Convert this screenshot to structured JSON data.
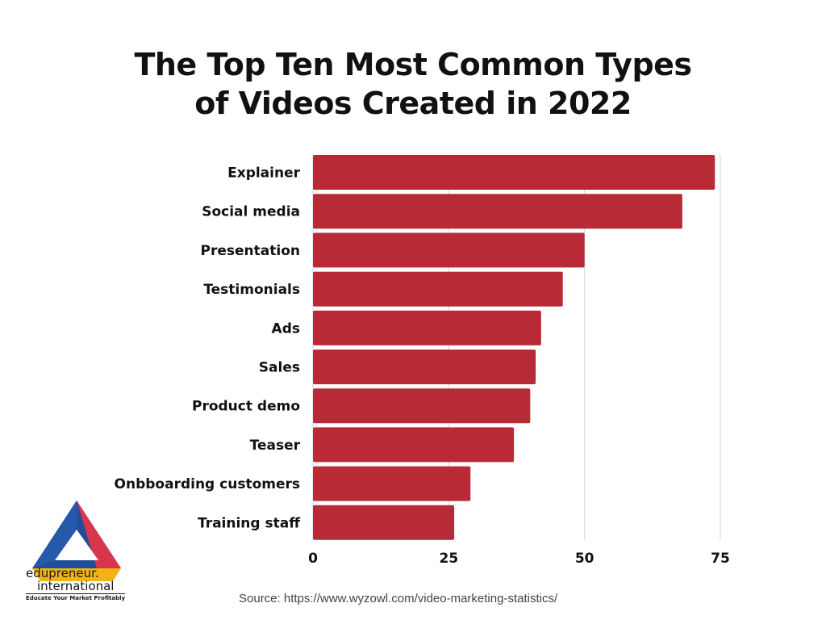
{
  "title": {
    "line1": "The Top Ten Most Common Types",
    "line2": "of Videos Created in 2022"
  },
  "source_text": "Source:  https://www.wyzowl.com/video-marketing-statistics/",
  "logo": {
    "name_line1": "edupreneur.",
    "name_line2": "international",
    "tagline": "Educate Your Market Profitably"
  },
  "colors": {
    "bar": "#b82a35",
    "grid": "#d4d4d4"
  },
  "chart_data": {
    "type": "bar",
    "orientation": "horizontal",
    "title": "The Top Ten Most Common Types of Videos Created in 2022",
    "xlabel": "",
    "ylabel": "",
    "categories": [
      "Explainer",
      "Social media",
      "Presentation",
      "Testimonials",
      "Ads",
      "Sales",
      "Product demo",
      "Teaser",
      "Onbboarding customers",
      "Training staff"
    ],
    "values": [
      74,
      68,
      50,
      46,
      42,
      41,
      40,
      37,
      29,
      26
    ],
    "xlim": [
      0,
      75
    ],
    "xticks": [
      0,
      25,
      50,
      75
    ],
    "grid": "vertical"
  }
}
